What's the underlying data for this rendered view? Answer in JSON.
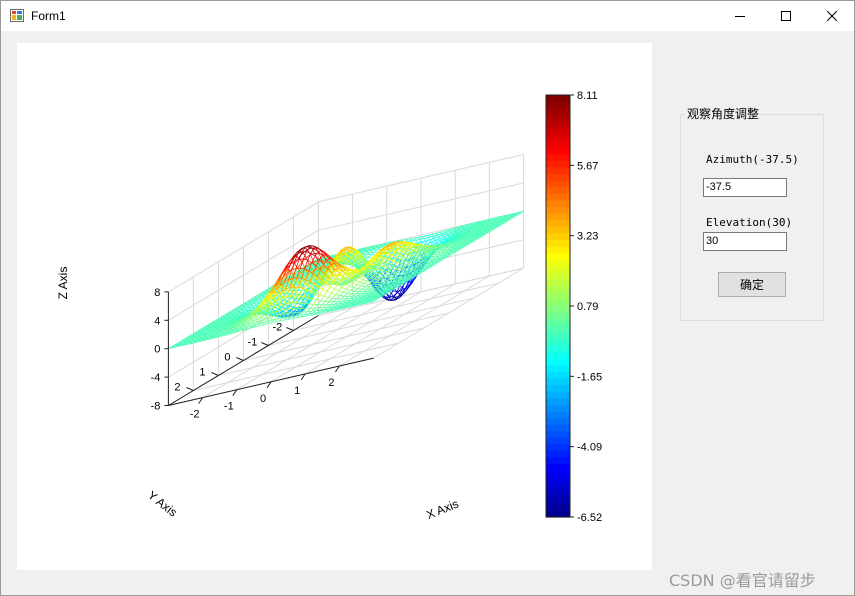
{
  "window": {
    "title": "Form1",
    "minimize_icon": "minimize-icon",
    "maximize_icon": "maximize-icon",
    "close_icon": "close-icon"
  },
  "chart_data": {
    "type": "surface-mesh",
    "function": "peaks",
    "x_label": "X Axis",
    "y_label": "Y Axis",
    "z_label": "Z Axis",
    "x_ticks": [
      "-2",
      "-1",
      "0",
      "1",
      "2"
    ],
    "y_ticks": [
      "2",
      "1",
      "0",
      "-1",
      "-2"
    ],
    "z_ticks": [
      "8",
      "4",
      "0",
      "-4",
      "-8"
    ],
    "z_range": [
      -8,
      8
    ],
    "x_range": [
      -3,
      3
    ],
    "y_range": [
      -3,
      3
    ],
    "azimuth": -37.5,
    "elevation": 30,
    "colormap": "jet",
    "colorbar_labels": [
      "8.11",
      "5.67",
      "3.23",
      "0.79",
      "-1.65",
      "-4.09",
      "-6.52"
    ],
    "colorbar_range": [
      -6.52,
      8.11
    ],
    "grid": true
  },
  "controls": {
    "group_title": "观察角度调整",
    "azimuth_label": "Azimuth(-37.5)",
    "azimuth_value": "-37.5",
    "elevation_label": "Elevation(30)",
    "elevation_value": "30",
    "confirm_label": "确定"
  },
  "watermark": "CSDN @看官请留步"
}
